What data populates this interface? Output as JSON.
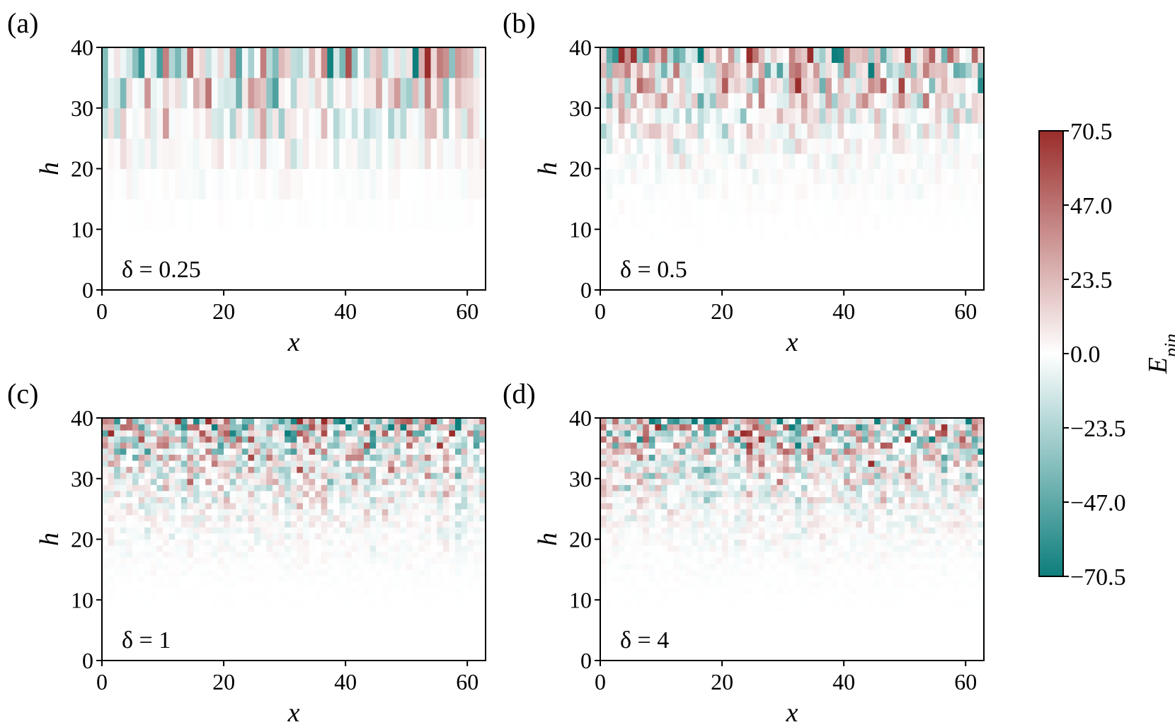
{
  "chart_data": [
    {
      "type": "heatmap",
      "panel_label": "(a)",
      "annotation": "δ = 0.25",
      "xlabel": "x",
      "ylabel": "h",
      "xlim": [
        0,
        63
      ],
      "ylim": [
        0,
        40
      ],
      "xticks": [
        0,
        20,
        40,
        60
      ],
      "yticks": [
        0,
        10,
        20,
        30,
        40
      ],
      "x_bins": 63,
      "h_bins": 8,
      "delta": 0.25,
      "seed": 11,
      "front_min": 7,
      "front_max": 9
    },
    {
      "type": "heatmap",
      "panel_label": "(b)",
      "annotation": "δ = 0.5",
      "xlabel": "x",
      "ylabel": "h",
      "xlim": [
        0,
        63
      ],
      "ylim": [
        0,
        40
      ],
      "xticks": [
        0,
        20,
        40,
        60
      ],
      "yticks": [
        0,
        10,
        20,
        30,
        40
      ],
      "x_bins": 63,
      "h_bins": 16,
      "delta": 0.5,
      "seed": 23,
      "front_min": 6,
      "front_max": 9
    },
    {
      "type": "heatmap",
      "panel_label": "(c)",
      "annotation": "δ = 1",
      "xlabel": "x",
      "ylabel": "h",
      "xlim": [
        0,
        63
      ],
      "ylim": [
        0,
        40
      ],
      "xticks": [
        0,
        20,
        40,
        60
      ],
      "yticks": [
        0,
        10,
        20,
        30,
        40
      ],
      "x_bins": 63,
      "h_bins": 40,
      "delta": 1,
      "seed": 37,
      "front_min": 6,
      "front_max": 10
    },
    {
      "type": "heatmap",
      "panel_label": "(d)",
      "annotation": "δ = 4",
      "xlabel": "x",
      "ylabel": "h",
      "xlim": [
        0,
        63
      ],
      "ylim": [
        0,
        40
      ],
      "xticks": [
        0,
        20,
        40,
        60
      ],
      "yticks": [
        0,
        10,
        20,
        30,
        40
      ],
      "x_bins": 63,
      "h_bins": 40,
      "delta": 4,
      "seed": 53,
      "front_min": 6,
      "front_max": 10
    }
  ],
  "colorbar": {
    "label": "E_pin",
    "label_main": "E",
    "label_sub": "pin",
    "vmin": -70.5,
    "vmax": 70.5,
    "ticks": [
      "70.5",
      "47.0",
      "23.5",
      "0.0",
      "−23.5",
      "−47.0",
      "−70.5"
    ],
    "tick_values": [
      70.5,
      47.0,
      23.5,
      0.0,
      -23.5,
      -47.0,
      -70.5
    ],
    "colors": {
      "low": "#0d7e7c",
      "mid": "#ffffff",
      "high": "#9a2d2b"
    }
  }
}
